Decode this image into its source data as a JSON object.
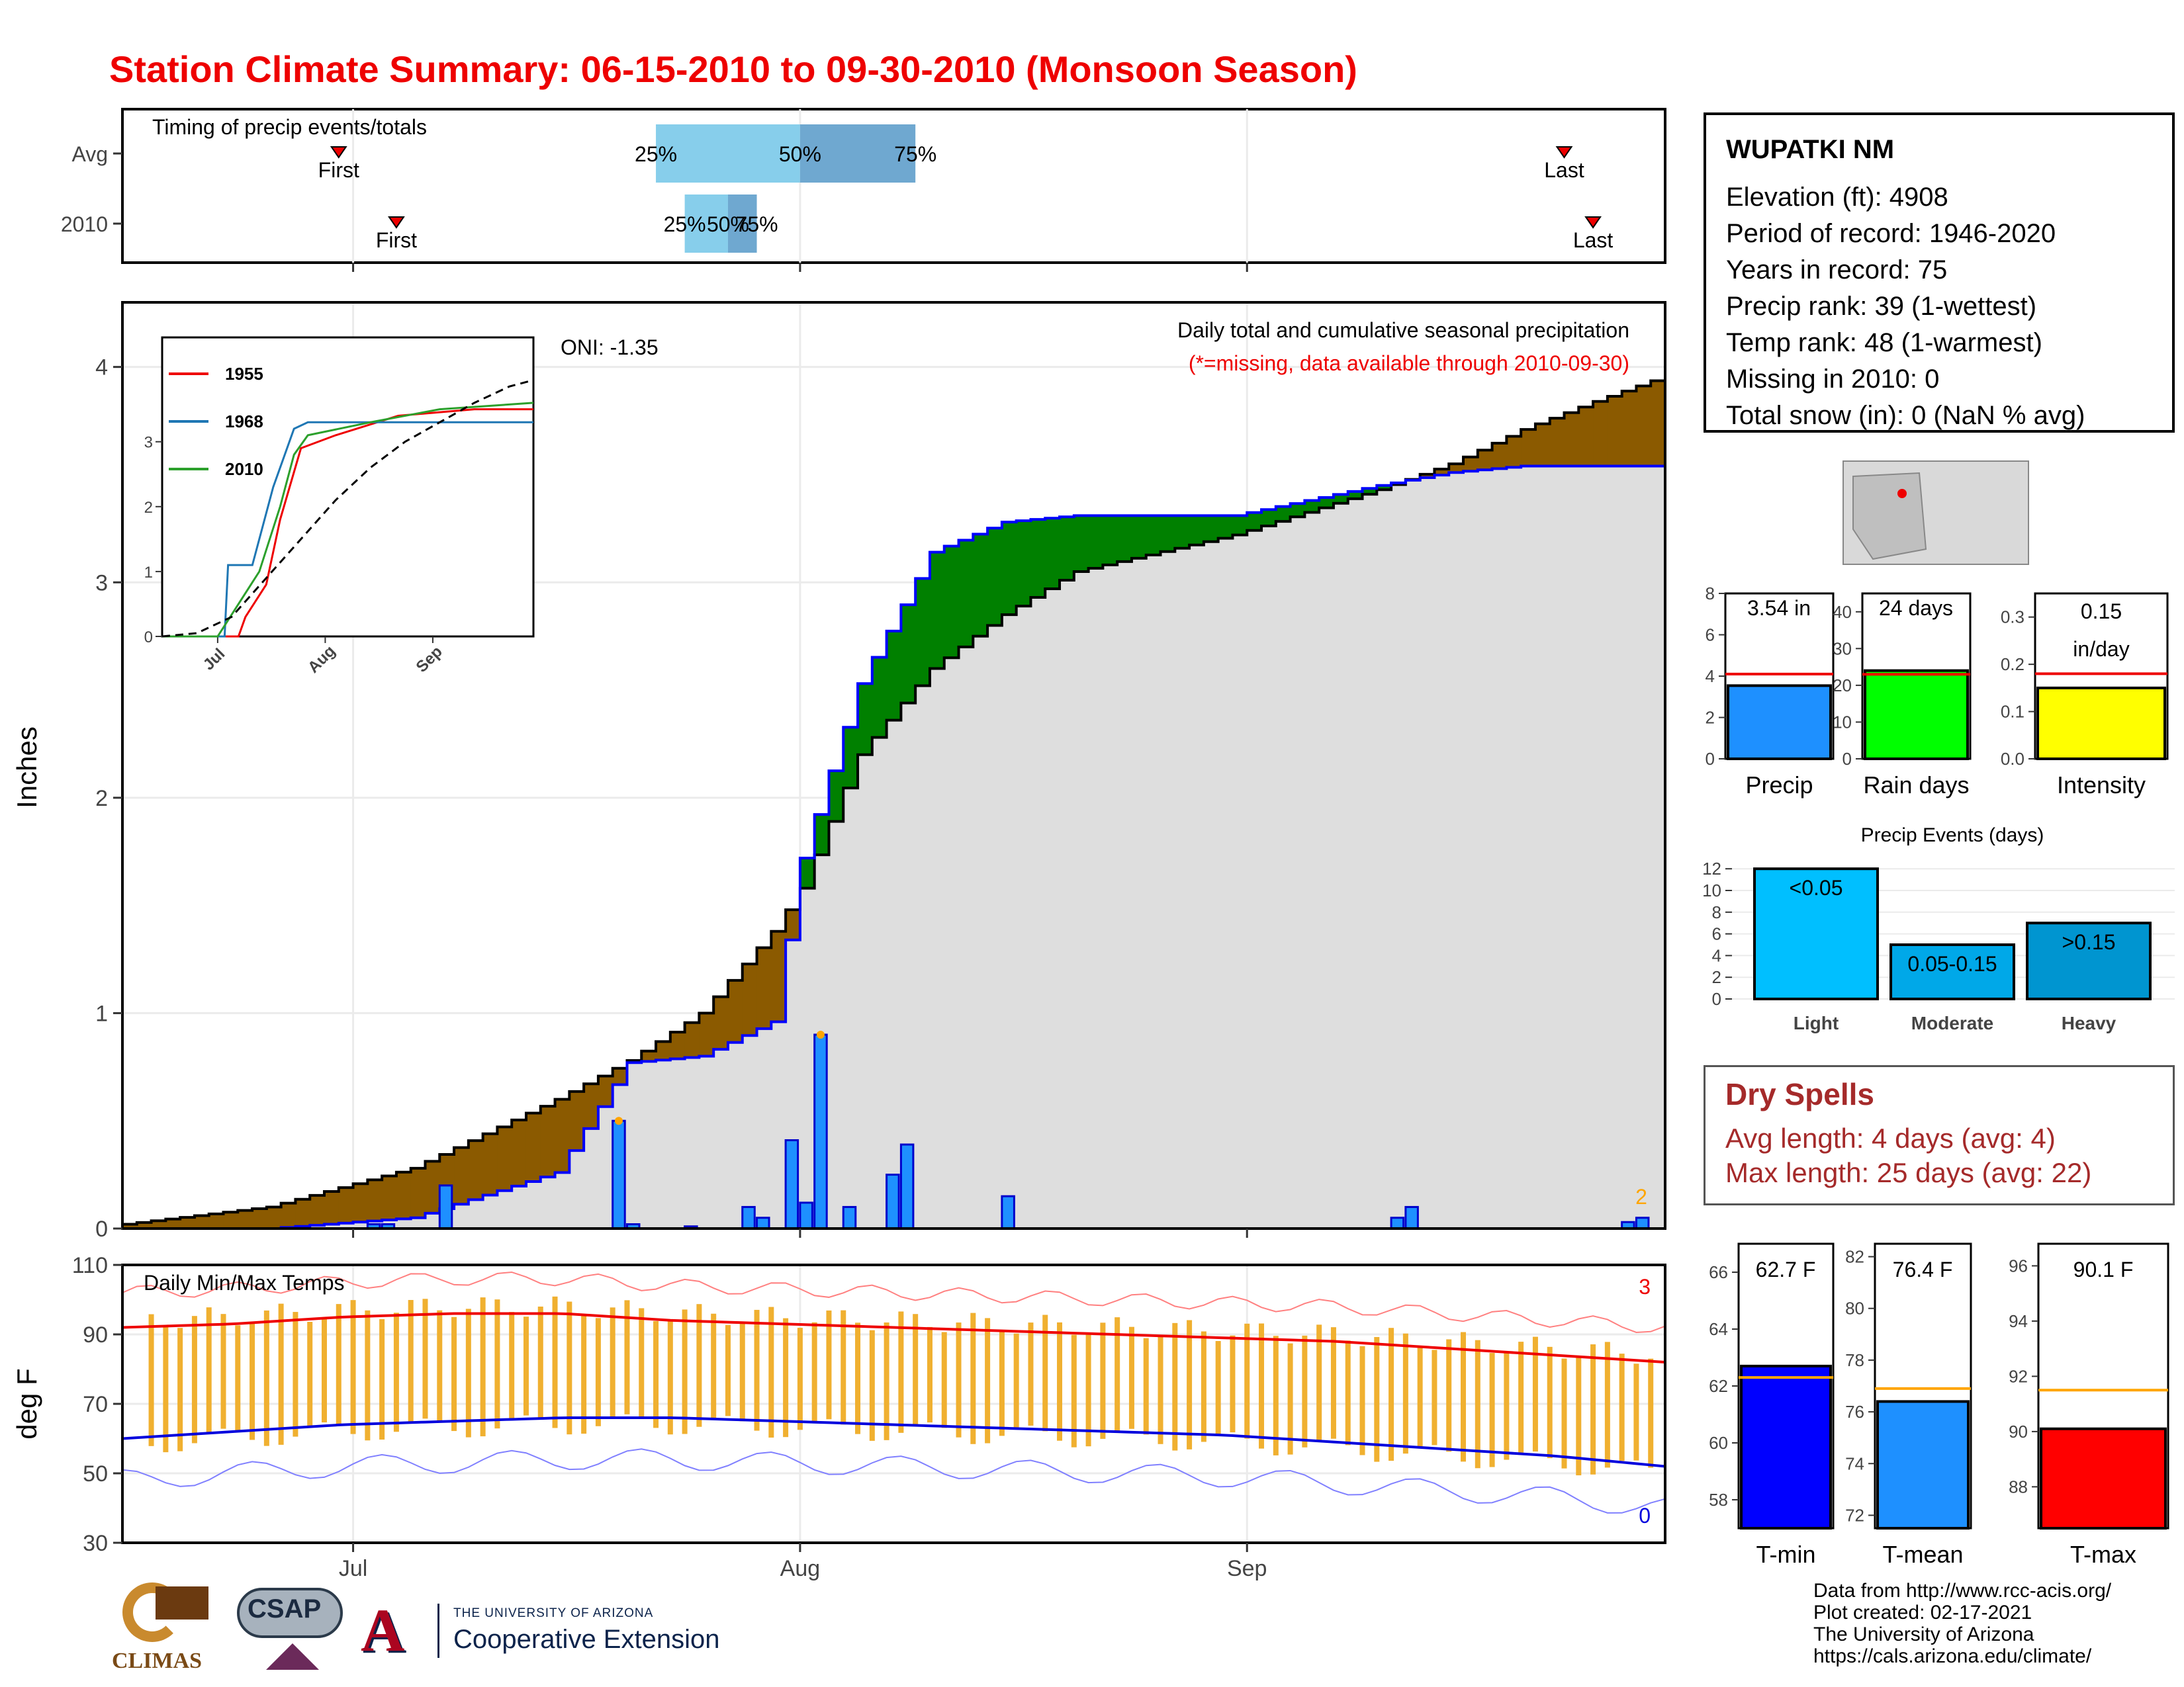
{
  "title": "Station Climate Summary: 06-15-2010 to 09-30-2010 (Monsoon Season)",
  "timing": {
    "title": "Timing of precip events/totals",
    "rows": [
      {
        "label": "Avg",
        "first": "06-30",
        "q25": "07-22",
        "q50": "08-01",
        "q75": "08-09",
        "last": "09-23"
      },
      {
        "label": "2010",
        "first": "07-04",
        "q25": "07-24",
        "q50": "07-27",
        "q75": "07-29",
        "last": "09-25"
      }
    ],
    "labels": {
      "first": "First",
      "last": "Last",
      "q25": "25%",
      "q50": "50%",
      "q75": "75%"
    }
  },
  "station": {
    "name": "WUPATKI NM",
    "lines": [
      "Elevation (ft): 4908",
      "Period of record: 1946-2020",
      "Years in record: 75",
      "Precip rank: 39 (1-wettest)",
      "Temp rank: 48 (1-warmest)",
      "Missing in 2010: 0",
      "Total snow (in): 0 (NaN % avg)"
    ]
  },
  "main_chart": {
    "ylabel": "Inches",
    "oni": "ONI: -1.35",
    "heading": "Daily total and cumulative seasonal precipitation",
    "note": "(*=missing, data available through 2010-09-30)",
    "corner_count": "2",
    "x_ticks": [
      "Jul",
      "Aug",
      "Sep"
    ],
    "y_ticks": [
      "0",
      "1",
      "2",
      "3",
      "4"
    ]
  },
  "temp_chart": {
    "title": "Daily Min/Max Temps",
    "ylabel": "deg F",
    "y_ticks": [
      "30",
      "50",
      "70",
      "90",
      "110"
    ],
    "count_hi": "3",
    "count_lo": "0"
  },
  "inset": {
    "legend": [
      "1955",
      "1968",
      "2010"
    ],
    "y_ticks": [
      "0",
      "1",
      "2",
      "3"
    ],
    "x_ticks": [
      "Jul",
      "Aug",
      "Sep"
    ]
  },
  "mini": {
    "precip": {
      "label": "Precip",
      "value": "3.54 in",
      "ticks": [
        "0",
        "2",
        "4",
        "6",
        "8"
      ]
    },
    "raindays": {
      "label": "Rain days",
      "value": "24 days",
      "ticks": [
        "0",
        "10",
        "20",
        "30",
        "40"
      ]
    },
    "intensity": {
      "label": "Intensity",
      "value": "0.15",
      "unit": "in/day",
      "ticks": [
        "0.0",
        "0.1",
        "0.2",
        "0.3"
      ]
    }
  },
  "events": {
    "title": "Precip Events (days)",
    "ticks": [
      "0",
      "2",
      "4",
      "6",
      "8",
      "10",
      "12"
    ],
    "bars": [
      {
        "cat": "Light",
        "label": "<0.05",
        "value": 12
      },
      {
        "cat": "Moderate",
        "label": "0.05-0.15",
        "value": 5
      },
      {
        "cat": "Heavy",
        "label": ">0.15",
        "value": 7
      }
    ]
  },
  "dry": {
    "title": "Dry Spells",
    "avg": "Avg length: 4 days (avg: 4)",
    "max": "Max length: 25 days (avg: 22)"
  },
  "temps_mini": {
    "tmin": {
      "label": "T-min",
      "value": "62.7 F",
      "ticks": [
        "58",
        "60",
        "62",
        "64",
        "66"
      ]
    },
    "tmean": {
      "label": "T-mean",
      "value": "76.4 F",
      "ticks": [
        "72",
        "74",
        "76",
        "78",
        "80",
        "82"
      ]
    },
    "tmax": {
      "label": "T-max",
      "value": "90.1 F",
      "ticks": [
        "88",
        "90",
        "92",
        "94",
        "96"
      ]
    }
  },
  "footer": [
    "Data from http://www.rcc-acis.org/",
    "Plot created: 02-17-2021",
    "The University of Arizona",
    "https://cals.arizona.edu/climate/"
  ],
  "logos": {
    "climas": "CLIMAS",
    "csap": "CSAP",
    "ua_top": "THE UNIVERSITY OF ARIZONA",
    "ua_bottom": "Cooperative Extension"
  },
  "chart_data": {
    "type": "area",
    "x": [
      "06-15",
      "06-25",
      "07-05",
      "07-15",
      "07-20",
      "07-25",
      "07-30",
      "08-01",
      "08-05",
      "08-10",
      "08-15",
      "08-20",
      "08-31",
      "09-10",
      "09-15",
      "09-20",
      "09-25",
      "09-30"
    ],
    "series": [
      {
        "name": "avg cumulative",
        "values": [
          0.02,
          0.1,
          0.28,
          0.6,
          0.78,
          1.0,
          1.38,
          1.58,
          2.2,
          2.6,
          2.85,
          3.05,
          3.22,
          3.43,
          3.55,
          3.71,
          3.84,
          3.96
        ]
      },
      {
        "name": "2010 cumulative",
        "values": [
          0.0,
          0.0,
          0.05,
          0.26,
          0.77,
          0.8,
          0.96,
          1.72,
          2.53,
          3.14,
          3.28,
          3.31,
          3.31,
          3.45,
          3.51,
          3.54,
          3.54,
          3.54
        ]
      }
    ],
    "daily_precip": [
      {
        "date": "07-02",
        "value": 0.02
      },
      {
        "date": "07-03",
        "value": 0.02
      },
      {
        "date": "07-07",
        "value": 0.2
      },
      {
        "date": "07-19",
        "value": 0.5
      },
      {
        "date": "07-20",
        "value": 0.02
      },
      {
        "date": "07-24",
        "value": 0.01
      },
      {
        "date": "07-28",
        "value": 0.1
      },
      {
        "date": "07-29",
        "value": 0.05
      },
      {
        "date": "07-31",
        "value": 0.41
      },
      {
        "date": "08-01",
        "value": 0.12
      },
      {
        "date": "08-02",
        "value": 0.9
      },
      {
        "date": "08-04",
        "value": 0.1
      },
      {
        "date": "08-07",
        "value": 0.25
      },
      {
        "date": "08-08",
        "value": 0.39
      },
      {
        "date": "08-15",
        "value": 0.15
      },
      {
        "date": "09-11",
        "value": 0.05
      },
      {
        "date": "09-12",
        "value": 0.1
      },
      {
        "date": "09-27",
        "value": 0.03
      },
      {
        "date": "09-28",
        "value": 0.05
      }
    ],
    "temps": {
      "avg_max": [
        92,
        93,
        95,
        96,
        96,
        94,
        93,
        92,
        91,
        90,
        89,
        88,
        86,
        84,
        82
      ],
      "avg_min": [
        60,
        62,
        64,
        65,
        66,
        66,
        65,
        64,
        63,
        62,
        61,
        59,
        57,
        55,
        52
      ]
    },
    "ylim": [
      0,
      4.3
    ],
    "ylabel": "Inches"
  }
}
